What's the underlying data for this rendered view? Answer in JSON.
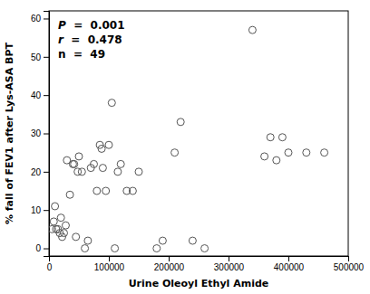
{
  "chart_data": {
    "type": "scatter",
    "xlabel": "Urine Oleoyl Ethyl Amide",
    "ylabel": "% fall of FEV1 after Lys-ASA BPT",
    "x": [
      5000,
      8000,
      10000,
      12000,
      15000,
      18000,
      20000,
      22000,
      25000,
      28000,
      30000,
      35000,
      40000,
      42000,
      45000,
      48000,
      50000,
      55000,
      60000,
      65000,
      70000,
      75000,
      80000,
      85000,
      88000,
      90000,
      95000,
      100000,
      105000,
      110000,
      115000,
      120000,
      130000,
      140000,
      150000,
      180000,
      190000,
      210000,
      220000,
      240000,
      260000,
      340000,
      360000,
      370000,
      380000,
      390000,
      400000,
      430000,
      460000
    ],
    "values": [
      5,
      7,
      11,
      5,
      5,
      4,
      8,
      3,
      4,
      6,
      23,
      14,
      22,
      22,
      3,
      20,
      24,
      20,
      0,
      2,
      21,
      22,
      15,
      27,
      26,
      21,
      15,
      27,
      38,
      0,
      20,
      22,
      15,
      15,
      20,
      0,
      2,
      25,
      33,
      2,
      0,
      57,
      24,
      29,
      23,
      29,
      25,
      25,
      25
    ],
    "xlim": [
      0,
      500000
    ],
    "ylim": [
      -2,
      62
    ],
    "xticks": [
      0,
      100000,
      200000,
      300000,
      400000,
      500000
    ],
    "yticks": [
      0,
      10,
      20,
      30,
      40,
      50,
      60
    ],
    "color": "#555555",
    "marker": "open_circle",
    "annotation": [
      "P  =  0.001",
      "r  =  0.478",
      "n  =  49"
    ]
  }
}
